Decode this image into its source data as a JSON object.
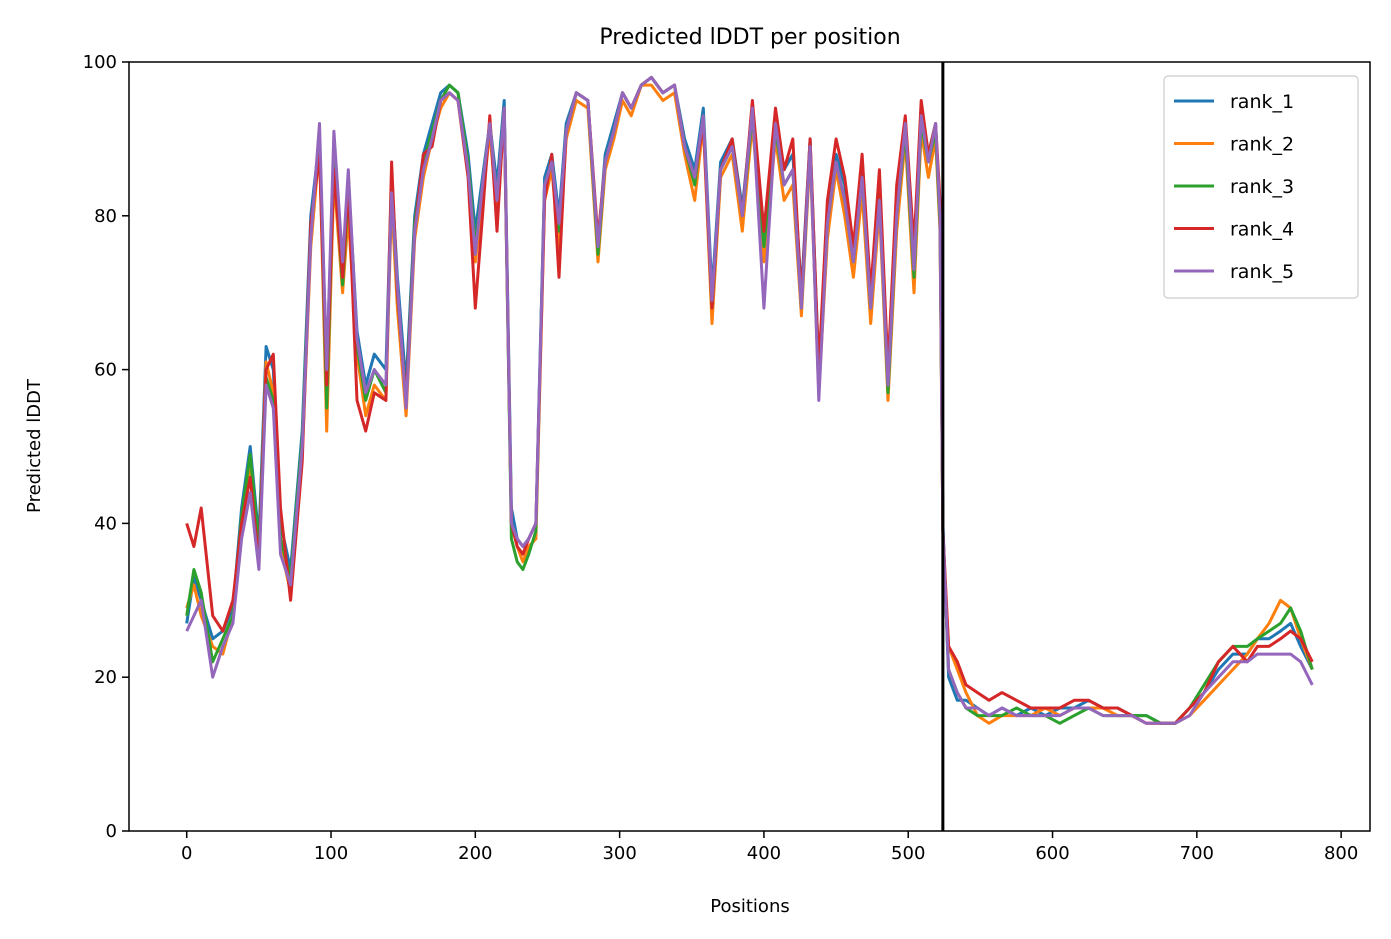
{
  "chart_data": {
    "type": "line",
    "title": "Predicted lDDT per position",
    "xlabel": "Positions",
    "ylabel": "Predicted lDDT",
    "xlim": [
      -40,
      820
    ],
    "ylim": [
      0,
      100
    ],
    "xticks": [
      0,
      100,
      200,
      300,
      400,
      500,
      600,
      700,
      800
    ],
    "yticks": [
      0,
      20,
      40,
      60,
      80,
      100
    ],
    "xtick_labels": [
      "0",
      "100",
      "200",
      "300",
      "400",
      "500",
      "600",
      "700",
      "800"
    ],
    "ytick_labels": [
      "0",
      "20",
      "40",
      "60",
      "80",
      "100"
    ],
    "grid": false,
    "legend_position": "top-right",
    "vertical_line": {
      "x": 524,
      "color": "#000000"
    },
    "x": [
      0,
      5,
      10,
      18,
      25,
      32,
      38,
      44,
      50,
      55,
      60,
      65,
      72,
      80,
      86,
      92,
      97,
      102,
      108,
      112,
      118,
      124,
      130,
      138,
      142,
      146,
      152,
      158,
      164,
      170,
      176,
      182,
      188,
      195,
      200,
      205,
      210,
      215,
      220,
      225,
      229,
      233,
      237,
      242,
      248,
      253,
      258,
      263,
      270,
      278,
      285,
      290,
      296,
      302,
      308,
      315,
      322,
      330,
      338,
      345,
      352,
      358,
      364,
      370,
      378,
      385,
      392,
      400,
      408,
      414,
      420,
      426,
      432,
      438,
      444,
      450,
      456,
      462,
      468,
      474,
      480,
      486,
      492,
      498,
      504,
      509,
      514,
      519,
      522,
      524,
      528,
      534,
      540,
      548,
      556,
      565,
      575,
      585,
      595,
      605,
      615,
      625,
      635,
      645,
      655,
      665,
      675,
      685,
      695,
      705,
      715,
      725,
      735,
      742,
      750,
      758,
      765,
      772,
      780
    ],
    "series": [
      {
        "name": "rank_1",
        "color": "#1f77b4",
        "values": [
          27,
          33,
          30,
          25,
          26,
          29,
          42,
          50,
          38,
          63,
          60,
          40,
          34,
          52,
          80,
          90,
          60,
          88,
          73,
          85,
          65,
          58,
          62,
          60,
          85,
          72,
          58,
          80,
          88,
          92,
          96,
          97,
          96,
          88,
          78,
          85,
          92,
          84,
          95,
          42,
          38,
          37,
          38,
          40,
          85,
          88,
          80,
          92,
          96,
          95,
          76,
          88,
          92,
          96,
          94,
          97,
          98,
          96,
          97,
          90,
          86,
          94,
          70,
          87,
          90,
          81,
          94,
          78,
          92,
          86,
          88,
          70,
          90,
          60,
          80,
          88,
          84,
          76,
          86,
          70,
          84,
          58,
          82,
          92,
          74,
          93,
          88,
          92,
          80,
          40,
          20,
          17,
          17,
          16,
          15,
          16,
          15,
          16,
          15,
          16,
          16,
          17,
          16,
          16,
          15,
          15,
          14,
          14,
          16,
          18,
          21,
          23,
          23,
          25,
          25,
          26,
          27,
          24,
          21
        ]
      },
      {
        "name": "rank_2",
        "color": "#ff7f0e",
        "values": [
          29,
          32,
          28,
          24,
          23,
          28,
          40,
          47,
          36,
          61,
          57,
          37,
          31,
          49,
          76,
          89,
          52,
          85,
          70,
          80,
          62,
          54,
          58,
          56,
          82,
          68,
          54,
          77,
          85,
          90,
          94,
          96,
          95,
          86,
          74,
          82,
          91,
          80,
          93,
          40,
          37,
          35,
          37,
          38,
          82,
          86,
          76,
          90,
          95,
          94,
          74,
          86,
          90,
          95,
          93,
          97,
          97,
          95,
          96,
          88,
          82,
          92,
          66,
          85,
          88,
          78,
          92,
          74,
          90,
          82,
          84,
          67,
          88,
          57,
          77,
          86,
          80,
          72,
          83,
          66,
          81,
          56,
          78,
          90,
          70,
          91,
          85,
          90,
          78,
          38,
          24,
          21,
          18,
          15,
          14,
          15,
          15,
          15,
          16,
          15,
          16,
          16,
          16,
          15,
          15,
          14,
          14,
          14,
          15,
          17,
          19,
          21,
          23,
          25,
          27,
          30,
          29,
          25,
          21
        ]
      },
      {
        "name": "rank_3",
        "color": "#2ca02c",
        "values": [
          28,
          34,
          31,
          22,
          25,
          28,
          41,
          49,
          37,
          59,
          56,
          38,
          33,
          51,
          78,
          90,
          55,
          87,
          71,
          83,
          63,
          56,
          60,
          57,
          84,
          70,
          56,
          79,
          87,
          91,
          95,
          97,
          96,
          87,
          76,
          84,
          92,
          82,
          94,
          38,
          35,
          34,
          36,
          39,
          84,
          87,
          78,
          91,
          96,
          95,
          75,
          87,
          91,
          96,
          94,
          97,
          98,
          96,
          97,
          89,
          84,
          93,
          68,
          86,
          89,
          80,
          93,
          76,
          91,
          84,
          86,
          68,
          89,
          58,
          79,
          87,
          82,
          74,
          85,
          68,
          83,
          57,
          80,
          91,
          72,
          92,
          87,
          91,
          79,
          39,
          21,
          18,
          16,
          15,
          15,
          15,
          16,
          15,
          15,
          14,
          15,
          16,
          15,
          15,
          15,
          15,
          14,
          14,
          16,
          19,
          22,
          24,
          24,
          25,
          26,
          27,
          29,
          26,
          21
        ]
      },
      {
        "name": "rank_4",
        "color": "#d62728",
        "values": [
          40,
          37,
          42,
          28,
          26,
          30,
          40,
          46,
          35,
          60,
          62,
          42,
          30,
          48,
          79,
          88,
          58,
          86,
          72,
          84,
          56,
          52,
          57,
          56,
          87,
          70,
          56,
          78,
          88,
          89,
          95,
          96,
          95,
          85,
          68,
          80,
          93,
          78,
          94,
          40,
          37,
          36,
          38,
          40,
          82,
          88,
          72,
          91,
          96,
          95,
          77,
          87,
          91,
          96,
          94,
          97,
          98,
          96,
          97,
          89,
          85,
          92,
          68,
          86,
          90,
          80,
          95,
          78,
          94,
          86,
          90,
          69,
          90,
          60,
          82,
          90,
          85,
          76,
          88,
          70,
          86,
          60,
          84,
          93,
          76,
          95,
          88,
          92,
          82,
          39,
          24,
          22,
          19,
          18,
          17,
          18,
          17,
          16,
          16,
          16,
          17,
          17,
          16,
          16,
          15,
          14,
          14,
          14,
          16,
          18,
          22,
          24,
          22,
          24,
          24,
          25,
          26,
          25,
          22
        ]
      },
      {
        "name": "rank_5",
        "color": "#9467bd",
        "values": [
          26,
          28,
          30,
          20,
          24,
          27,
          38,
          44,
          34,
          58,
          55,
          36,
          32,
          50,
          77,
          92,
          60,
          91,
          74,
          86,
          64,
          57,
          60,
          58,
          83,
          71,
          55,
          78,
          86,
          90,
          95,
          96,
          95,
          86,
          75,
          84,
          92,
          82,
          94,
          40,
          38,
          37,
          38,
          40,
          84,
          87,
          79,
          91,
          96,
          95,
          76,
          87,
          91,
          96,
          94,
          97,
          98,
          96,
          97,
          89,
          85,
          93,
          69,
          86,
          89,
          80,
          94,
          68,
          92,
          84,
          86,
          68,
          89,
          56,
          79,
          87,
          82,
          74,
          85,
          68,
          82,
          58,
          80,
          92,
          73,
          93,
          87,
          92,
          80,
          39,
          21,
          18,
          16,
          16,
          15,
          16,
          15,
          15,
          15,
          15,
          16,
          16,
          15,
          15,
          15,
          14,
          14,
          14,
          15,
          18,
          20,
          22,
          22,
          23,
          23,
          23,
          23,
          22,
          19
        ]
      }
    ]
  }
}
